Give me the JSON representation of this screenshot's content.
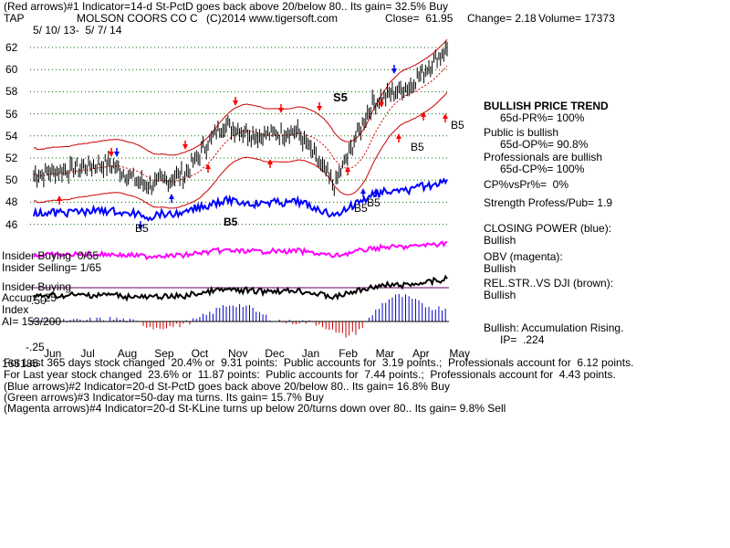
{
  "header": {
    "line1": "(Red arrows)#1 Indicator=14-d St-PctD goes back above 20/below 80.. Its gain= 32.5% Buy",
    "ticker": "TAP",
    "company": "MOLSON COORS CO C",
    "copyright": "(C)2014 www.tigersoft.com",
    "close": "Close=  61.95",
    "change": "Change= 2.18",
    "volume": "Volume= 17373",
    "daterange": "5/ 10/ 13-  5/ 7/ 14"
  },
  "y_ticks": [
    "62",
    "60",
    "58",
    "56",
    "54",
    "52",
    "50",
    "48",
    "46"
  ],
  "x_ticks": [
    "Jun",
    "Jul",
    "Aug",
    "Sep",
    "Oct",
    "Nov",
    "Dec",
    "Jan",
    "Feb",
    "Mar",
    "Apr",
    "May"
  ],
  "annotations": {
    "s5": "S5",
    "b5_list": [
      "B5",
      "B5",
      "B5",
      "B5",
      "B5",
      "B5"
    ]
  },
  "left_labels": {
    "insider_buying_ratio": "Insider Buying  0/65",
    "insider_selling_ratio": "Insider Selling= 1/65",
    "insider_buying": "Insider Buying",
    "accum_top": "Accum  .25",
    "accum_mid": "Index",
    "neg_50": "-.50",
    "ai": "AI= 153/200",
    "neg_25": "-.25"
  },
  "right_panel": {
    "trend_title": "BULLISH PRICE TREND",
    "trend_value": "65d-PR%= 100%",
    "public_title": "Public is bullish",
    "public_value": "65d-OP%= 90.8%",
    "pros_title": "Professionals are bullish",
    "pros_value": "65d-CP%= 100%",
    "cpvspr": "CP%vsPr%=  0%",
    "strength": "Strength Profess/Pub= 1.9",
    "closing_power_title": "CLOSING POWER (blue):",
    "closing_power_value": "Bullish",
    "obv_title": "OBV (magenta):",
    "obv_value": "Bullish",
    "relstr_title": "REL.STR..VS DJI (brown):",
    "relstr_value": "Bullish",
    "accum_title": "Bullish: Accumulation Rising.",
    "ip": "IP=  .224"
  },
  "footer": {
    "line1": "For Last 365 days stock changed  20.4% or  9.31 points:  Public accounts for  3.19 points.;  Professionals account for  6.12 points.",
    "line1_overlap": "165185",
    "line2": "For Last year stock changed  23.6% or  11.87 points:  Public accounts for  7.44 points.;  Professionals account for  4.43 points.",
    "line3": "(Blue arrows)#2 Indicator=20-d St-PctD goes back above 20/below 80.. Its gain= 16.8% Buy",
    "line4": "(Green arrows)#3 Indicator=50-day ma turns. Its gain= 15.7% Buy",
    "line5": "(Magenta arrows)#4 Indicator=20-d St-KLine turns up below 20/turns down over 80.. Its gain= 9.8% Sell"
  },
  "colors": {
    "price_bars": "#000000",
    "bands": "#cc0000",
    "ma50": "#660099",
    "closing_power": "#0000ff",
    "obv": "#ff00ff",
    "rel_str": "#000000",
    "accum_pos": "#0000cc",
    "accum_neg": "#cc0000",
    "grid": "#006600",
    "arrow_red": "#ff0000",
    "arrow_blue": "#0000ff"
  },
  "chart_data": {
    "type": "line",
    "title": "MOLSON COORS CO C",
    "xlabel": "",
    "ylabel": "",
    "ylim": [
      45,
      63
    ],
    "x": [
      "Jun",
      "Jul",
      "Aug",
      "Sep",
      "Oct",
      "Nov",
      "Dec",
      "Jan",
      "Feb",
      "Mar",
      "Apr",
      "May"
    ],
    "series": [
      {
        "values": [
          50.5,
          51.0,
          51.5,
          49.5,
          50.5,
          55.0,
          54.0,
          54.5,
          49.5,
          57.0,
          58.5,
          62.0
        ]
      }
    ],
    "grid": true
  }
}
